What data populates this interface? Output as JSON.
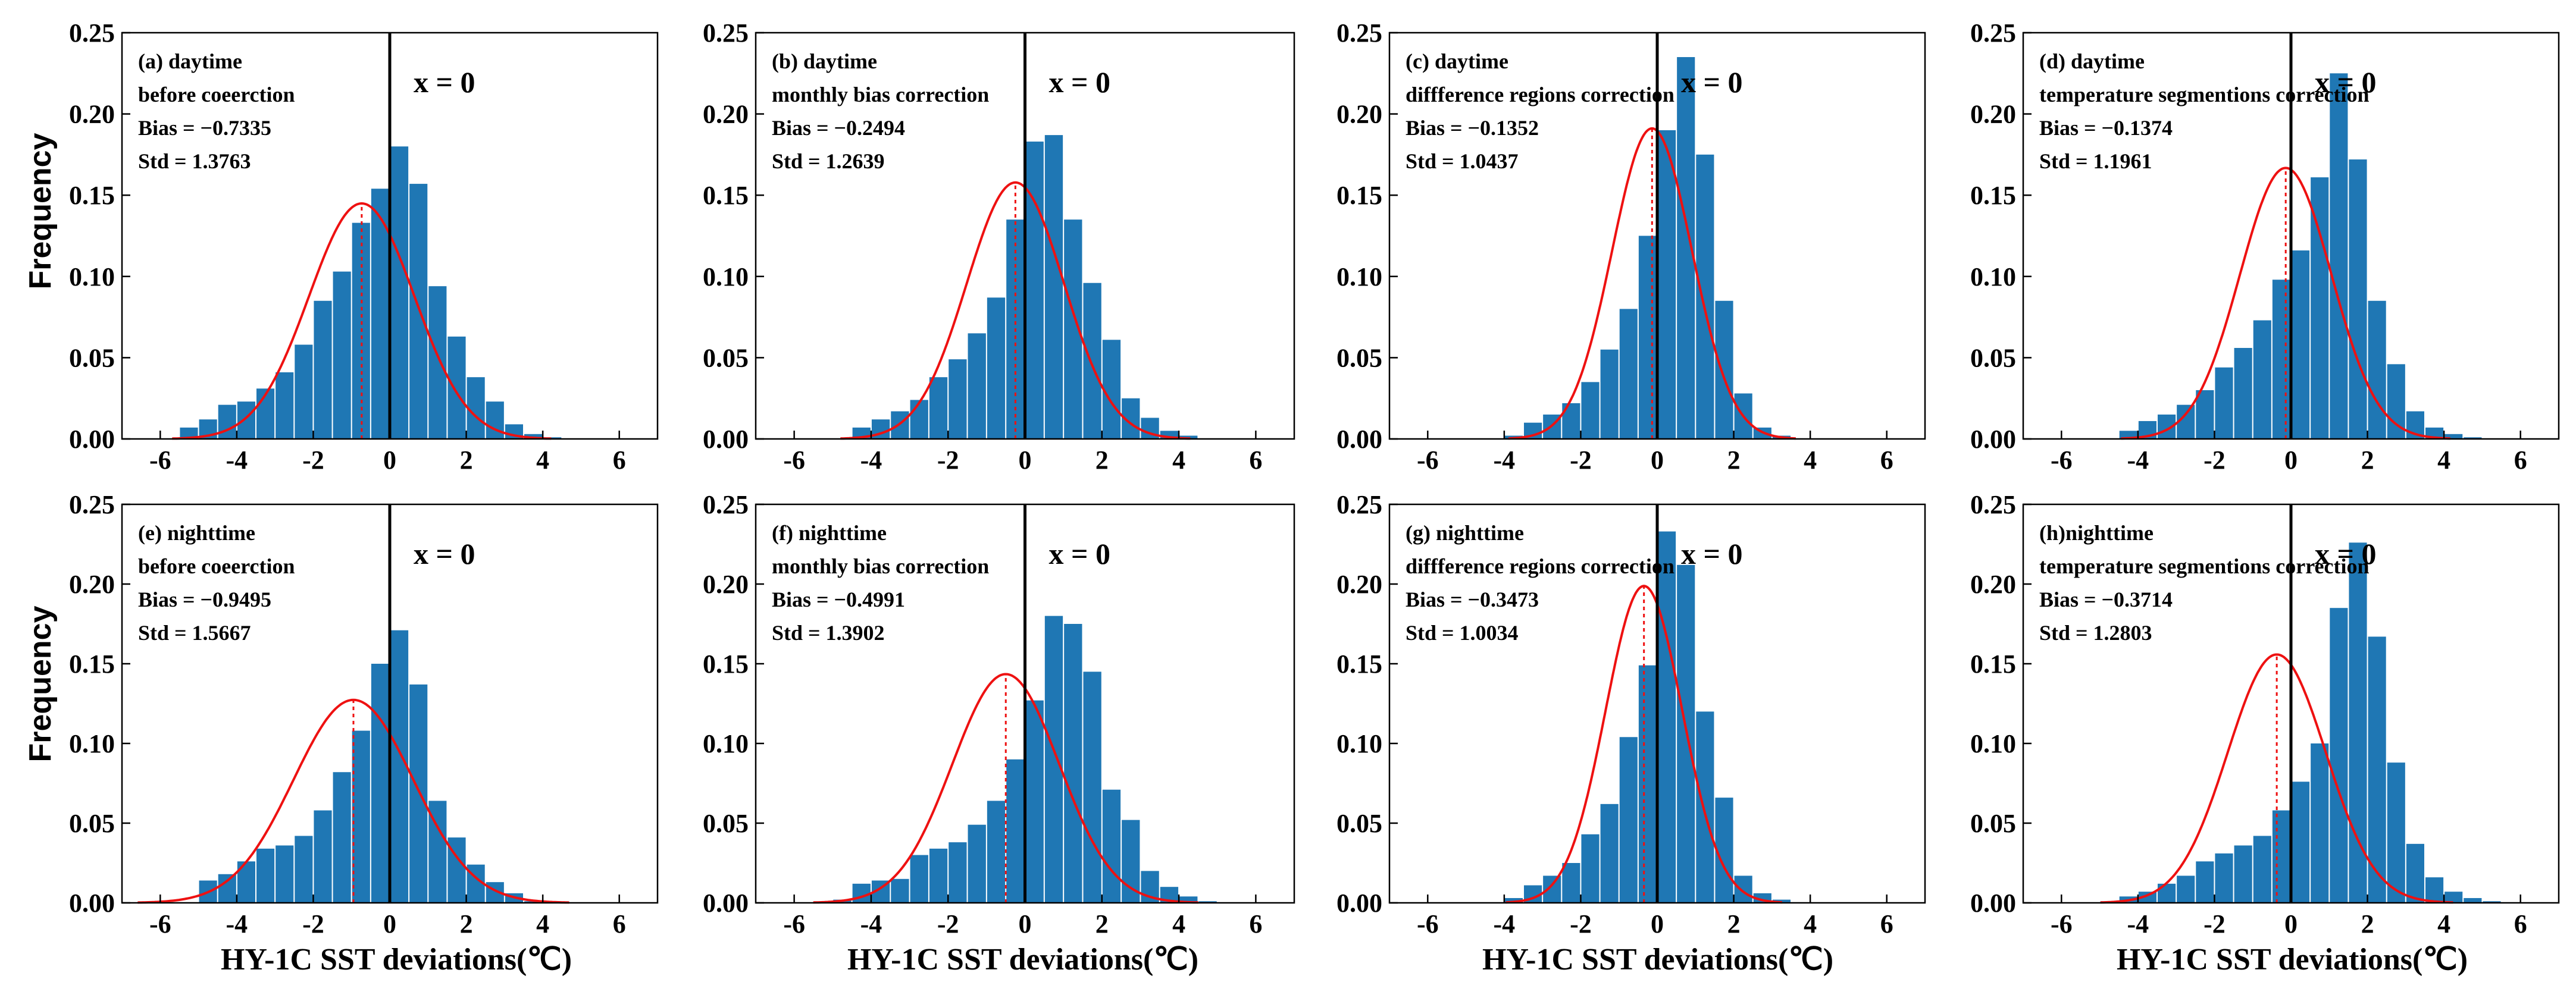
{
  "colors": {
    "bar": "#1f77b4",
    "curve": "#ee1111",
    "axis": "#000000"
  },
  "chart_data": {
    "type": "bar",
    "title": "",
    "common": {
      "xlim": [
        -7,
        7
      ],
      "ylim": [
        0,
        0.25
      ],
      "xticks": [
        -6,
        -4,
        -2,
        0,
        2,
        4,
        6
      ],
      "yticks_top": [
        "0.00",
        "0.05",
        "0.10",
        "0.15",
        "0.20",
        "0.25"
      ],
      "yticks_bottom": [
        "0.00",
        "0.05",
        "0.10",
        "0.15",
        "0.20",
        "0.25"
      ],
      "yticks_top_left": [
        "0.00",
        "0.05",
        "0.10",
        "0.15",
        "0.20",
        "0.25"
      ],
      "ylabel": "Frequency",
      "xlabel": "HY-1C SST deviations(℃)",
      "zero_label": "x = 0",
      "bin_width": 0.5
    },
    "panels": [
      {
        "id": "a",
        "line1": "(a) daytime",
        "line2": "before coeerction",
        "bias_text": "Bias = −0.7335",
        "std_text": "Std = 1.3763",
        "bias": -0.7335,
        "std": 1.3763,
        "bins_start": -5.5,
        "values": [
          0.007,
          0.012,
          0.021,
          0.023,
          0.031,
          0.041,
          0.058,
          0.085,
          0.103,
          0.133,
          0.154,
          0.18,
          0.157,
          0.094,
          0.063,
          0.038,
          0.023,
          0.009,
          0.003,
          0.001
        ],
        "ytick_labels": [
          "0.00",
          "0.05",
          "0.10",
          "0.15",
          "0.20",
          "0.25"
        ]
      },
      {
        "id": "b",
        "line1": "(b) daytime",
        "line2": "monthly bias correction",
        "bias_text": "Bias = −0.2494",
        "std_text": "Std = 1.2639",
        "bias": -0.2494,
        "std": 1.2639,
        "bins_start": -4.5,
        "values": [
          0.007,
          0.012,
          0.017,
          0.024,
          0.038,
          0.049,
          0.065,
          0.087,
          0.135,
          0.183,
          0.187,
          0.135,
          0.096,
          0.061,
          0.025,
          0.013,
          0.005,
          0.002
        ],
        "ytick_labels": [
          "0.00",
          "0.05",
          "0.10",
          "0.15",
          "0.20",
          "0.25"
        ]
      },
      {
        "id": "c",
        "line1": "(c) daytime",
        "line2": "diffference regions correction",
        "bias_text": "Bias = −0.1352",
        "std_text": "Std = 1.0437",
        "bias": -0.1352,
        "std": 1.0437,
        "bins_start": -4.0,
        "values": [
          0.002,
          0.01,
          0.015,
          0.022,
          0.035,
          0.055,
          0.08,
          0.125,
          0.19,
          0.235,
          0.175,
          0.085,
          0.028,
          0.007,
          0.002
        ],
        "ytick_labels": [
          "0.00",
          "0.05",
          "0.10",
          "0.15",
          "0.20",
          "0.25"
        ]
      },
      {
        "id": "d",
        "line1": "(d) daytime",
        "line2": "temperature segmentions correction",
        "bias_text": "Bias = −0.1374",
        "std_text": "Std = 1.1961",
        "bias": -0.1374,
        "std": 1.1961,
        "bins_start": -4.5,
        "values": [
          0.005,
          0.011,
          0.015,
          0.021,
          0.03,
          0.044,
          0.056,
          0.073,
          0.098,
          0.116,
          0.161,
          0.225,
          0.172,
          0.085,
          0.046,
          0.017,
          0.007,
          0.003,
          0.001
        ],
        "ytick_labels": [
          "0.00",
          "0.05",
          "0.10",
          "0.15",
          "0.20",
          "0.25"
        ]
      },
      {
        "id": "e",
        "line1": "(e) nighttime",
        "line2": "before coeerction",
        "bias_text": "Bias = −0.9495",
        "std_text": "Std = 1.5667",
        "bias": -0.9495,
        "std": 1.5667,
        "bins_start": -5.0,
        "values": [
          0.014,
          0.018,
          0.026,
          0.034,
          0.036,
          0.042,
          0.058,
          0.082,
          0.108,
          0.15,
          0.171,
          0.137,
          0.064,
          0.041,
          0.024,
          0.013,
          0.006,
          0.001,
          0.001
        ],
        "ytick_labels": [
          "0.00",
          "0.05",
          "0.10",
          "0.15",
          "0.20",
          "0.25"
        ]
      },
      {
        "id": "f",
        "line1": "(f) nighttime",
        "line2": "monthly bias correction",
        "bias_text": "Bias = −0.4991",
        "std_text": "Std = 1.3902",
        "bias": -0.4991,
        "std": 1.3902,
        "bins_start": -5.0,
        "values": [
          0.002,
          0.012,
          0.014,
          0.015,
          0.03,
          0.034,
          0.038,
          0.049,
          0.064,
          0.09,
          0.127,
          0.18,
          0.175,
          0.145,
          0.071,
          0.052,
          0.02,
          0.01,
          0.004,
          0.001
        ],
        "ytick_labels": [
          "0.00",
          "0.05",
          "0.10",
          "0.15",
          "0.20",
          "0.25"
        ]
      },
      {
        "id": "g",
        "line1": "(g) nighttime",
        "line2": "diffference regions correction",
        "bias_text": "Bias = −0.3473",
        "std_text": "Std = 1.0034",
        "bias": -0.3473,
        "std": 1.0034,
        "bins_start": -4.0,
        "values": [
          0.003,
          0.011,
          0.017,
          0.025,
          0.043,
          0.062,
          0.104,
          0.149,
          0.233,
          0.212,
          0.12,
          0.066,
          0.017,
          0.006,
          0.002
        ],
        "ytick_labels": [
          "0.00",
          "0.05",
          "0.10",
          "0.15",
          "0.20",
          "0.25"
        ]
      },
      {
        "id": "h",
        "line1": "(h)nighttime",
        "line2": "temperature segmentions correction",
        "bias_text": "Bias = −0.3714",
        "std_text": "Std = 1.2803",
        "bias": -0.3714,
        "std": 1.2803,
        "bins_start": -5.0,
        "values": [
          0.001,
          0.004,
          0.007,
          0.012,
          0.017,
          0.026,
          0.031,
          0.036,
          0.042,
          0.058,
          0.076,
          0.1,
          0.185,
          0.226,
          0.167,
          0.088,
          0.037,
          0.016,
          0.007,
          0.003,
          0.001
        ],
        "ytick_labels": [
          "0.00",
          "0.05",
          "0.10",
          "0.15",
          "0.20",
          "0.25"
        ]
      }
    ]
  }
}
